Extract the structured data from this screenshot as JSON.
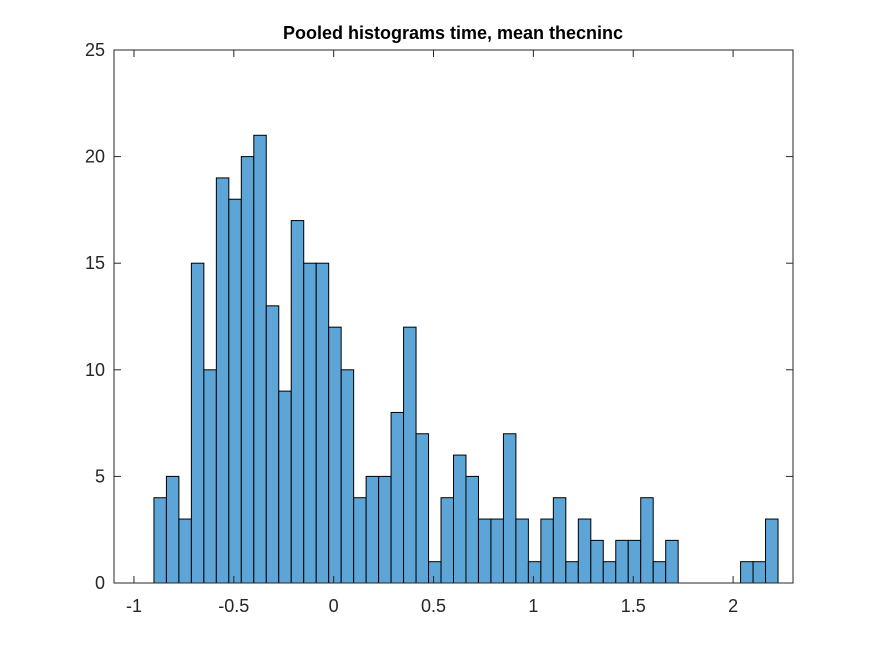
{
  "chart_data": {
    "type": "bar",
    "subtype": "histogram",
    "title": "Pooled histograms time, mean thecninc",
    "xlabel": "",
    "ylabel": "",
    "xlim": [
      -1.1,
      2.3
    ],
    "ylim": [
      0,
      25
    ],
    "x_ticks": [
      -1,
      -0.5,
      0,
      0.5,
      1,
      1.5,
      2
    ],
    "x_tick_labels": [
      "-1",
      "-0.5",
      "0",
      "0.5",
      "1",
      "1.5",
      "2"
    ],
    "y_ticks": [
      0,
      5,
      10,
      15,
      20,
      25
    ],
    "y_tick_labels": [
      "0",
      "5",
      "10",
      "15",
      "20",
      "25"
    ],
    "bin_start": -0.9,
    "bin_width": 0.0625,
    "counts": [
      4,
      5,
      3,
      15,
      10,
      19,
      18,
      20,
      21,
      13,
      9,
      17,
      15,
      15,
      12,
      10,
      4,
      5,
      5,
      8,
      12,
      7,
      1,
      4,
      6,
      5,
      3,
      3,
      7,
      3,
      1,
      3,
      4,
      1,
      3,
      2,
      1,
      2,
      2,
      4,
      1,
      2,
      0,
      0,
      0,
      0,
      0,
      1,
      1,
      3
    ],
    "bar_color": "#5ca5d6",
    "edge_color": "#000000",
    "grid": false,
    "legend": "none"
  }
}
